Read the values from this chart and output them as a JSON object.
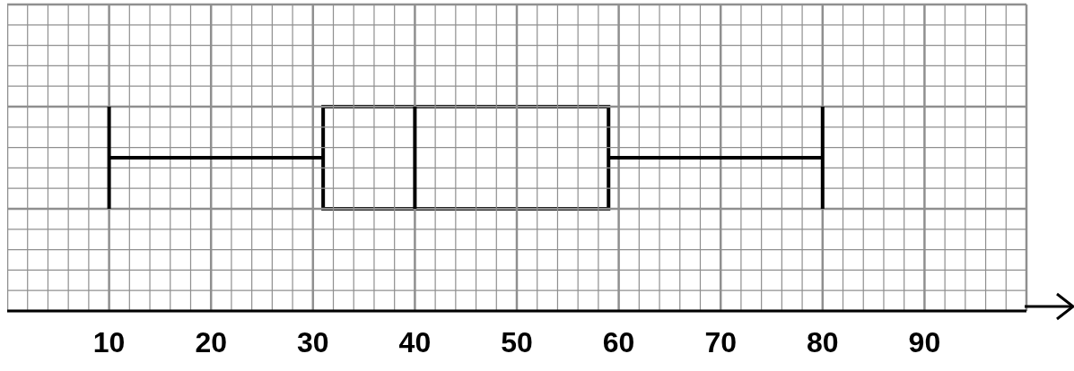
{
  "chart_data": {
    "type": "box",
    "orientation": "horizontal",
    "categories": [
      null
    ],
    "boxes": [
      {
        "low": 10,
        "q1": 31,
        "median": 40,
        "q3": 59,
        "high": 80
      }
    ],
    "color": "#000000",
    "xlim": [
      0,
      100
    ],
    "xticks": [
      {
        "value": 0,
        "label": null
      },
      {
        "value": 2,
        "label": null
      },
      {
        "value": 4,
        "label": null
      },
      {
        "value": 6,
        "label": null
      },
      {
        "value": 8,
        "label": null
      },
      10,
      {
        "value": 12,
        "label": null
      },
      {
        "value": 14,
        "label": null
      },
      {
        "value": 16,
        "label": null
      },
      {
        "value": 18,
        "label": null
      },
      20,
      {
        "value": 22,
        "label": null
      },
      {
        "value": 24,
        "label": null
      },
      {
        "value": 26,
        "label": null
      },
      {
        "value": 28,
        "label": null
      },
      30,
      {
        "value": 32,
        "label": null
      },
      {
        "value": 34,
        "label": null
      },
      {
        "value": 36,
        "label": null
      },
      {
        "value": 38,
        "label": null
      },
      40,
      {
        "value": 42,
        "label": null
      },
      {
        "value": 44,
        "label": null
      },
      {
        "value": 46,
        "label": null
      },
      {
        "value": 48,
        "label": null
      },
      50,
      {
        "value": 52,
        "label": null
      },
      {
        "value": 54,
        "label": null
      },
      {
        "value": 56,
        "label": null
      },
      {
        "value": 58,
        "label": null
      },
      60,
      {
        "value": 62,
        "label": null
      },
      {
        "value": 64,
        "label": null
      },
      {
        "value": 66,
        "label": null
      },
      {
        "value": 68,
        "label": null
      },
      70,
      {
        "value": 72,
        "label": null
      },
      {
        "value": 74,
        "label": null
      },
      {
        "value": 76,
        "label": null
      },
      {
        "value": 78,
        "label": null
      },
      80,
      {
        "value": 82,
        "label": null
      },
      {
        "value": 84,
        "label": null
      },
      {
        "value": 86,
        "label": null
      },
      {
        "value": 88,
        "label": null
      },
      90,
      {
        "value": 92,
        "label": null
      },
      {
        "value": 94,
        "label": null
      },
      {
        "value": 96,
        "label": null
      },
      {
        "value": 98,
        "label": null
      },
      {
        "value": 100,
        "label": null
      }
    ],
    "grid": true,
    "tick_labels": "x"
  }
}
